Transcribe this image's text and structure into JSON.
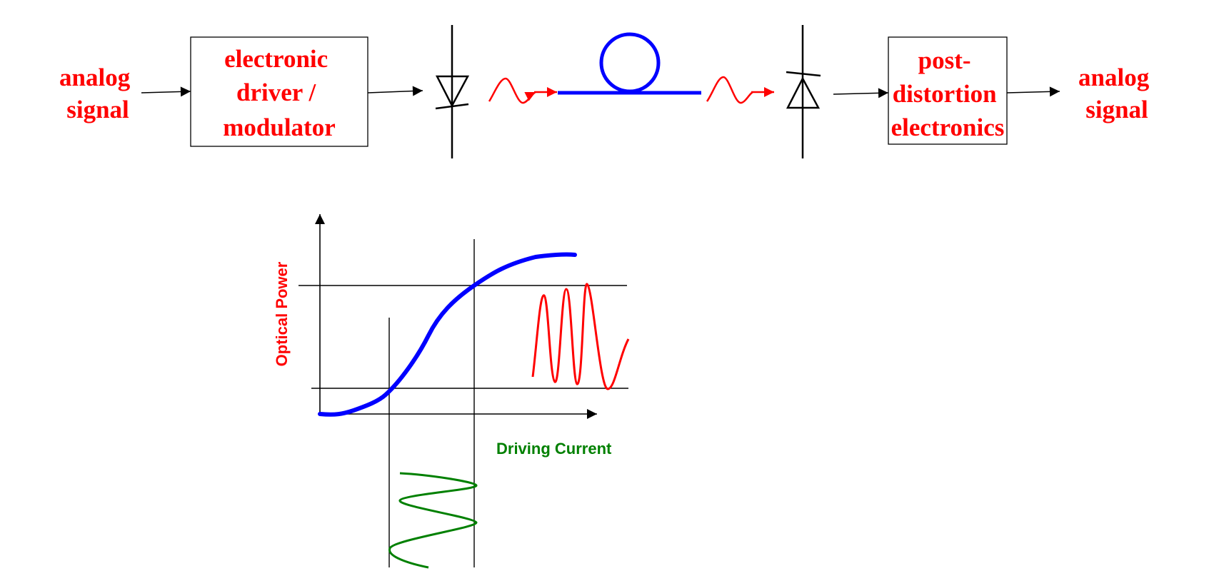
{
  "link": {
    "input_label": [
      "analog",
      "signal"
    ],
    "driver_label": [
      "electronic",
      "driver /",
      "modulator"
    ],
    "post_label": [
      "post-",
      "distortion",
      "electronics"
    ],
    "output_label": [
      "analog",
      "signal"
    ]
  },
  "curve": {
    "ylabel": "Optical Power",
    "xlabel": "Driving Current"
  },
  "colors": {
    "label": "#ff0000",
    "fiber": "#0000ff",
    "transfer_curve": "#0000ff",
    "input_wave": "#008000",
    "output_wave": "#ff0000",
    "line": "#000000"
  }
}
